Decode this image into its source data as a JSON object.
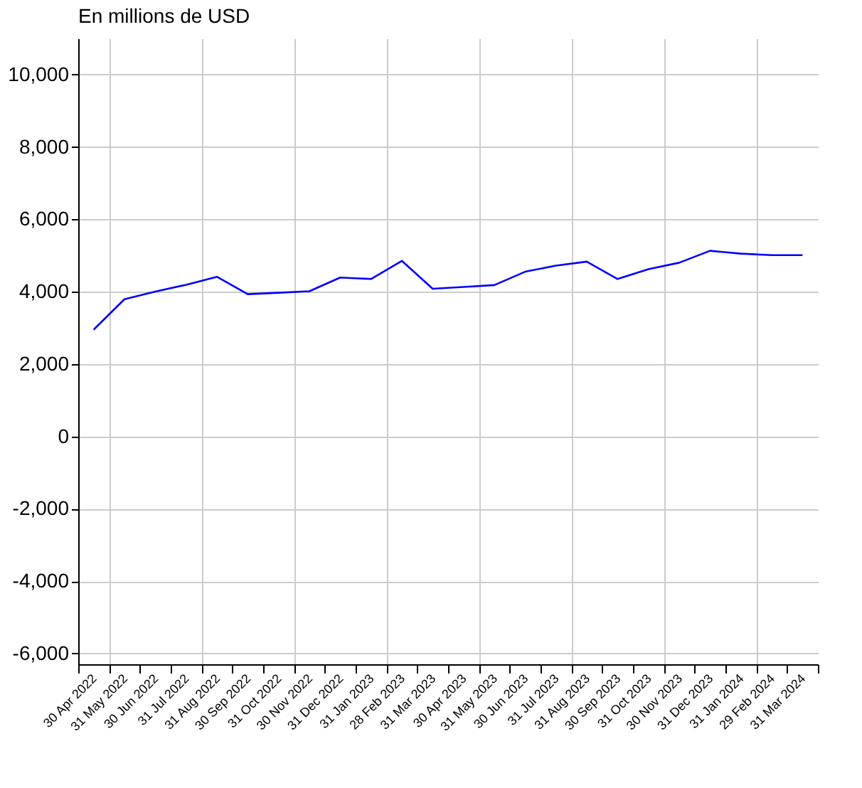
{
  "chart_data": {
    "type": "line",
    "title": "En millions de USD",
    "categories": [
      "30 Apr 2022",
      "31 May 2022",
      "30 Jun 2022",
      "31 Jul 2022",
      "31 Aug 2022",
      "30 Sep 2022",
      "31 Oct 2022",
      "30 Nov 2022",
      "31 Dec 2022",
      "31 Jan 2023",
      "28 Feb 2023",
      "31 Mar 2023",
      "30 Apr 2023",
      "31 May 2023",
      "30 Jun 2023",
      "31 Jul 2023",
      "31 Aug 2023",
      "30 Sep 2023",
      "31 Oct 2023",
      "30 Nov 2023",
      "31 Dec 2023",
      "31 Jan 2024",
      "29 Feb 2024",
      "31 Mar 2024"
    ],
    "series": [
      {
        "color": "#0000ff",
        "values": [
          2950,
          3790,
          4000,
          4190,
          4410,
          3930,
          3970,
          4010,
          4390,
          4350,
          4850,
          4080,
          4130,
          4180,
          4550,
          4720,
          4830,
          4350,
          4620,
          4800,
          5130,
          5050,
          5010,
          5010
        ]
      }
    ],
    "ylim": [
      -6300,
      11000
    ],
    "yticks": [
      {
        "value": -6000,
        "label": "-6,000"
      },
      {
        "value": -4000,
        "label": "-4,000"
      },
      {
        "value": -2000,
        "label": "-2,000"
      },
      0,
      {
        "value": 2000,
        "label": "2,000"
      },
      {
        "value": 4000,
        "label": "4,000"
      },
      {
        "value": 6000,
        "label": "6,000"
      },
      {
        "value": 8000,
        "label": "8,000"
      },
      {
        "value": 10000,
        "label": "10,000"
      }
    ],
    "grid": true,
    "line_style": "solid"
  }
}
